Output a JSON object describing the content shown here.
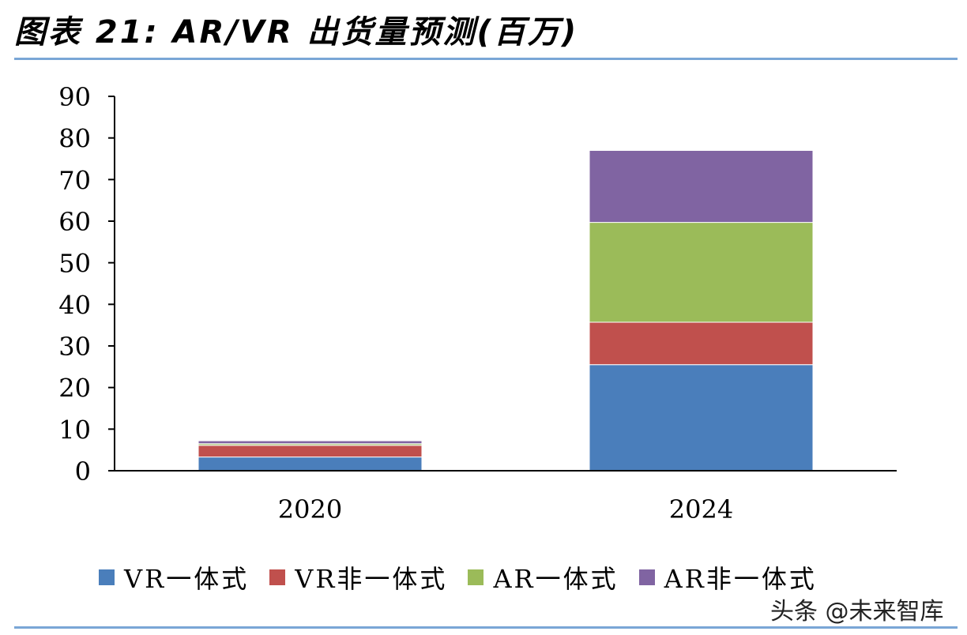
{
  "header": {
    "title": "图表 21: AR/VR 出货量预测(百万)"
  },
  "watermark": "头条 @未来智库",
  "chart_data": {
    "type": "bar",
    "stacked": true,
    "categories": [
      "2020",
      "2024"
    ],
    "series": [
      {
        "name": "VR一体式",
        "color": "#4a7ebb",
        "values": [
          3.3,
          25.5
        ]
      },
      {
        "name": "VR非一体式",
        "color": "#c0504d",
        "values": [
          2.8,
          10.2
        ]
      },
      {
        "name": "AR一体式",
        "color": "#9bbb59",
        "values": [
          0.4,
          24.0
        ]
      },
      {
        "name": "AR非一体式",
        "color": "#8064a2",
        "values": [
          0.7,
          17.3
        ]
      }
    ],
    "ylim": [
      0,
      90
    ],
    "yticks": [
      0,
      10,
      20,
      30,
      40,
      50,
      60,
      70,
      80,
      90
    ],
    "title": "",
    "xlabel": "",
    "ylabel": "",
    "grid": false,
    "legend": "bottom"
  }
}
